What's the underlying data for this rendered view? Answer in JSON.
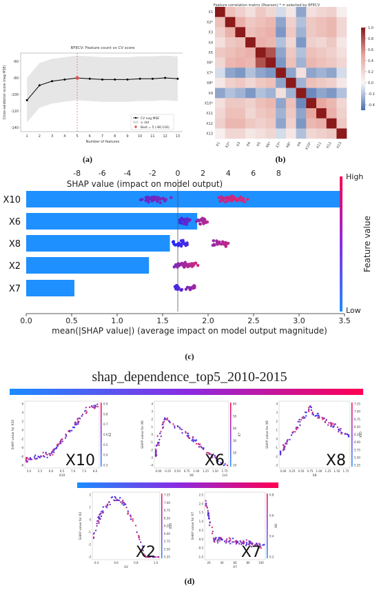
{
  "panel_a": {
    "title": "RFECV: Feature count vs CV score",
    "ylabel": "Cross-validation score (neg MSE)",
    "xlabel": "Number of features",
    "legend": [
      "CV neg MSE",
      "± std",
      "Best = 5 (-80.116)"
    ],
    "yticks": [
      "-60",
      "-80",
      "-100",
      "-120",
      "-140"
    ],
    "caption": "(a)"
  },
  "panel_b": {
    "title": "Feature correlation matrix (Pearson)  * = selected by RFECV",
    "features": [
      "X1",
      "X2*",
      "X3",
      "X4",
      "X5",
      "X6*",
      "X7*",
      "X8*",
      "X9",
      "X10*",
      "X11",
      "X12",
      "X13"
    ],
    "colorbar_ticks": [
      "1.0",
      "0.8",
      "0.6",
      "0.4",
      "0.2",
      "0.0",
      "-0.2",
      "-0.4"
    ],
    "caption": "(b)"
  },
  "panel_c": {
    "top_xlabel": "SHAP value (impact on model output)",
    "top_ticks": [
      "-8",
      "-6",
      "-4",
      "-2",
      "0",
      "2",
      "4",
      "6",
      "8"
    ],
    "bottom_xlabel": "mean(|SHAP value|) (average impact on model output magnitude)",
    "bottom_ticks": [
      "0.0",
      "0.5",
      "1.0",
      "1.5",
      "2.0",
      "2.5",
      "3.0",
      "3.5"
    ],
    "colorbar_high": "High",
    "colorbar_low": "Low",
    "colorbar_label": "Feature value",
    "features": [
      "X10",
      "X6",
      "X8",
      "X2",
      "X7"
    ],
    "caption": "(c)"
  },
  "panel_d": {
    "title": "shap_dependence_top5_2010-2015",
    "subplots": [
      {
        "label": "X10",
        "ylabel": "SHAP value for X10",
        "xlabel": "X10",
        "cbar": "X2",
        "xticks": [
          "5.0",
          "5.5",
          "6.0",
          "6.5",
          "7.0",
          "7.5",
          "8.0"
        ],
        "yticks": [
          "6",
          "4",
          "2",
          "0",
          "-2",
          "-4",
          "-6",
          "-8"
        ],
        "cticks": [
          "0.9",
          "0.8",
          "0.7",
          "0.6",
          "0.5",
          "0.4",
          "0.3"
        ]
      },
      {
        "label": "X6",
        "ylabel": "SHAP value for X6",
        "xlabel": "X6",
        "cbar": "X7",
        "xticks": [
          "0.00",
          "0.25",
          "0.50",
          "0.75",
          "1.00",
          "1.25",
          "1.50",
          "1.75"
        ],
        "yticks": [
          "4",
          "3",
          "2",
          "1",
          "0",
          "-1",
          "-2",
          "-3",
          "-4"
        ],
        "cticks": [
          "60",
          "50",
          "40",
          "30",
          "20",
          "10"
        ],
        "xoffset": "1e5"
      },
      {
        "label": "X8",
        "ylabel": "SHAP value for X8",
        "xlabel": "X8",
        "cbar": "X10",
        "xticks": [
          "0.00",
          "0.25",
          "0.50",
          "0.75",
          "1.00",
          "1.25",
          "1.50",
          "1.75"
        ],
        "yticks": [
          "4",
          "3",
          "2",
          "1",
          "0",
          "-1",
          "-2",
          "-3"
        ],
        "cticks": [
          "7.25",
          "7.00",
          "6.75",
          "6.50",
          "6.25",
          "6.00",
          "5.75",
          "5.50",
          "5.25"
        ]
      },
      {
        "label": "X2",
        "ylabel": "SHAP value for X2",
        "xlabel": "X2",
        "cbar": "X10",
        "xticks": [
          "0.4",
          "0.6",
          "0.8",
          "1.0"
        ],
        "yticks": [
          "2",
          "1",
          "0",
          "-1",
          "-2",
          "-3"
        ],
        "cticks": [
          "7.25",
          "7.00",
          "6.75",
          "6.50",
          "6.25",
          "6.00",
          "5.75",
          "5.50",
          "5.25"
        ]
      },
      {
        "label": "X7",
        "ylabel": "SHAP value for X7",
        "xlabel": "X7",
        "cbar": "X8",
        "xticks": [
          "20",
          "40",
          "60",
          "80",
          "100"
        ],
        "yticks": [
          "2.5",
          "2.0",
          "1.5",
          "1.0",
          "0.5",
          "0.0",
          "-0.5",
          "-1.0"
        ],
        "cticks": [
          "0.8",
          "0.6",
          "0.4",
          "0.2"
        ]
      }
    ],
    "caption": "(d)"
  },
  "chart_data": [
    {
      "type": "line",
      "title": "RFECV: Feature count vs CV score",
      "xlabel": "Number of features",
      "ylabel": "Cross-validation score (neg MSE)",
      "x": [
        1,
        2,
        3,
        4,
        5,
        6,
        7,
        8,
        9,
        10,
        11,
        12,
        13
      ],
      "series": [
        {
          "name": "CV neg MSE",
          "values": [
            -107,
            -89,
            -84,
            -82,
            -80.116,
            -81,
            -82,
            -82,
            -82,
            -81,
            -81,
            -80,
            -81
          ]
        },
        {
          "name": "± std upper",
          "values": [
            -80,
            -62,
            -57,
            -55,
            -53,
            -54,
            -55,
            -55,
            -55,
            -54,
            -54,
            -53,
            -54
          ]
        },
        {
          "name": "± std lower",
          "values": [
            -134,
            -116,
            -111,
            -109,
            -107,
            -108,
            -109,
            -109,
            -109,
            -108,
            -108,
            -107,
            -108
          ]
        }
      ],
      "best": {
        "x": 5,
        "y": -80.116
      },
      "ylim": [
        -145,
        -50
      ],
      "xlim": [
        0.5,
        13.5
      ]
    },
    {
      "type": "heatmap",
      "title": "Feature correlation matrix (Pearson)  * = selected by RFECV",
      "labels": [
        "X1",
        "X2*",
        "X3",
        "X4",
        "X5",
        "X6*",
        "X7*",
        "X8*",
        "X9",
        "X10*",
        "X11",
        "X12",
        "X13"
      ],
      "vmin": -0.5,
      "vmax": 1.0,
      "matrix": [
        [
          1.0,
          0.35,
          0.25,
          0.15,
          0.3,
          0.2,
          -0.1,
          0.1,
          -0.3,
          0.15,
          0.2,
          0.25,
          0.05
        ],
        [
          0.35,
          1.0,
          0.45,
          0.3,
          0.35,
          0.4,
          -0.3,
          0.25,
          -0.2,
          0.3,
          0.35,
          0.4,
          0.2
        ],
        [
          0.25,
          0.45,
          1.0,
          0.35,
          0.4,
          0.45,
          -0.35,
          0.3,
          -0.25,
          0.3,
          0.35,
          0.4,
          0.2
        ],
        [
          0.15,
          0.3,
          0.35,
          1.0,
          0.45,
          0.4,
          -0.2,
          0.2,
          -0.35,
          0.25,
          0.2,
          0.3,
          0.1
        ],
        [
          0.3,
          0.35,
          0.4,
          0.45,
          1.0,
          0.8,
          -0.3,
          0.3,
          -0.2,
          0.35,
          0.3,
          0.25,
          0.15
        ],
        [
          0.2,
          0.4,
          0.45,
          0.4,
          0.8,
          1.0,
          -0.35,
          0.35,
          -0.25,
          0.4,
          0.35,
          0.3,
          0.2
        ],
        [
          -0.1,
          -0.3,
          -0.35,
          -0.2,
          -0.3,
          -0.35,
          1.0,
          -0.3,
          0.15,
          -0.3,
          -0.25,
          -0.3,
          -0.1
        ],
        [
          0.1,
          0.25,
          0.3,
          0.2,
          0.3,
          0.35,
          -0.3,
          1.0,
          -0.25,
          0.35,
          0.3,
          0.25,
          0.1
        ],
        [
          -0.3,
          -0.2,
          -0.25,
          -0.35,
          -0.2,
          -0.25,
          0.15,
          -0.25,
          1.0,
          -0.4,
          -0.3,
          -0.35,
          -0.2
        ],
        [
          0.15,
          0.3,
          0.3,
          0.25,
          0.35,
          0.4,
          -0.3,
          0.35,
          -0.4,
          1.0,
          0.5,
          0.4,
          0.2
        ],
        [
          0.2,
          0.35,
          0.35,
          0.2,
          0.3,
          0.35,
          -0.25,
          0.3,
          -0.3,
          0.5,
          1.0,
          0.45,
          0.25
        ],
        [
          0.25,
          0.4,
          0.4,
          0.3,
          0.25,
          0.3,
          -0.3,
          0.25,
          -0.35,
          0.4,
          0.45,
          1.0,
          0.3
        ],
        [
          0.05,
          0.2,
          0.2,
          0.1,
          0.15,
          0.2,
          -0.1,
          0.1,
          -0.2,
          0.2,
          0.25,
          0.3,
          1.0
        ]
      ]
    },
    {
      "type": "bar",
      "title": "",
      "categories": [
        "X10",
        "X6",
        "X8",
        "X2",
        "X7"
      ],
      "values": [
        3.45,
        1.88,
        1.58,
        1.35,
        0.53
      ],
      "xlabel": "mean(|SHAP value|) (average impact on model output magnitude)",
      "xlim": [
        0,
        3.5
      ]
    },
    {
      "type": "scatter",
      "title": "",
      "xlabel": "SHAP value (impact on model output)",
      "xlim": [
        -9,
        10
      ],
      "series": [
        {
          "name": "X10",
          "range": [
            -7.5,
            7.2
          ],
          "centers": [
            -1.8,
            4.5
          ],
          "spread": 1.6,
          "count": 90
        },
        {
          "name": "X6",
          "range": [
            -0.5,
            3.5
          ],
          "centers": [
            0.5,
            2.0
          ],
          "spread": 0.8,
          "count": 50
        },
        {
          "name": "X8",
          "range": [
            -0.5,
            5.5
          ],
          "centers": [
            0.3,
            3.5
          ],
          "spread": 0.9,
          "count": 50
        },
        {
          "name": "X2",
          "range": [
            -2.5,
            2.5
          ],
          "centers": [
            0.3,
            1.0
          ],
          "spread": 0.8,
          "count": 50
        },
        {
          "name": "X7",
          "range": [
            -0.8,
            2.8
          ],
          "centers": [
            0.0,
            1.0
          ],
          "spread": 0.5,
          "count": 30
        }
      ]
    }
  ]
}
